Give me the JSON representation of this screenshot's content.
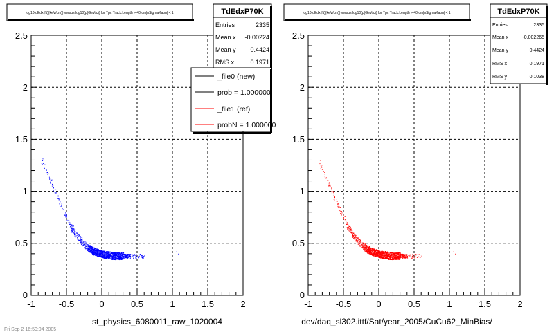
{
  "footer_text": "Fri Sep 2 16:50:04 2005",
  "chart_data": [
    {
      "type": "scatter",
      "title": "log10(dEdx(fit)(keV/cm)) versus log10(p(GeV/c)) for Tpc Track.Length > 40 cm|nSigmaKaon| < 1",
      "xlabel": "st_physics_6080011_raw_1020004",
      "ylabel": "",
      "xlim": [
        -1,
        2
      ],
      "ylim": [
        0,
        2.5
      ],
      "x_ticks": [
        "-1",
        "-0.5",
        "0",
        "0.5",
        "1",
        "1.5",
        "2"
      ],
      "y_ticks": [
        "0",
        "0.5",
        "1",
        "1.5",
        "2",
        "2.5"
      ],
      "grid": true,
      "color": "#0000ff",
      "stats": {
        "name": "TdEdxP70K",
        "rows": [
          {
            "label": "Entries",
            "value": "2335"
          },
          {
            "label": "Mean x",
            "value": "-0.00224"
          },
          {
            "label": "Mean y",
            "value": "0.4424"
          },
          {
            "label": "RMS x",
            "value": "0.1971"
          }
        ]
      },
      "legend": [
        {
          "label": "_file0 (new)",
          "color": "#000000"
        },
        {
          "label": "prob = 1.000000",
          "color": "#000000"
        },
        {
          "label": "_file1 (ref)",
          "color": "#ff0000"
        },
        {
          "label": "probN = 1.000000",
          "color": "#ff0000"
        }
      ],
      "band": [
        [
          -0.85,
          1.3
        ],
        [
          -0.8,
          1.22
        ],
        [
          -0.75,
          1.14
        ],
        [
          -0.7,
          1.06
        ],
        [
          -0.65,
          0.98
        ],
        [
          -0.6,
          0.9
        ],
        [
          -0.55,
          0.82
        ],
        [
          -0.5,
          0.75
        ],
        [
          -0.45,
          0.68
        ],
        [
          -0.4,
          0.62
        ],
        [
          -0.35,
          0.57
        ],
        [
          -0.3,
          0.53
        ],
        [
          -0.25,
          0.49
        ],
        [
          -0.2,
          0.46
        ],
        [
          -0.15,
          0.44
        ],
        [
          -0.1,
          0.42
        ],
        [
          -0.05,
          0.41
        ],
        [
          0.0,
          0.4
        ],
        [
          0.05,
          0.39
        ],
        [
          0.1,
          0.39
        ],
        [
          0.15,
          0.38
        ],
        [
          0.2,
          0.38
        ],
        [
          0.25,
          0.38
        ],
        [
          0.3,
          0.38
        ],
        [
          0.4,
          0.38
        ],
        [
          0.5,
          0.38
        ],
        [
          0.6,
          0.38
        ]
      ],
      "outliers": [
        [
          1.05,
          0.42
        ],
        [
          1.08,
          0.4
        ]
      ]
    },
    {
      "type": "scatter",
      "title": "log10(dEdx(fit)(keV/cm)) versus log10(p(GeV/c)) for Tpc Track.Length > 40 cm|nSigmaKaon| < 1",
      "xlabel": "dev/daq_sl302.ittf/Sat/year_2005/CuCu62_MinBias/",
      "ylabel": "",
      "xlim": [
        -1,
        2
      ],
      "ylim": [
        0,
        2.5
      ],
      "x_ticks": [
        "-1",
        "-0.5",
        "0",
        "0.5",
        "1",
        "1.5",
        "2"
      ],
      "y_ticks": [
        "0",
        "0.5",
        "1",
        "1.5",
        "2",
        "2.5"
      ],
      "grid": true,
      "color": "#ff0000",
      "stats": {
        "name": "TdEdxP70K",
        "rows": [
          {
            "label": "Entries",
            "value": "2335"
          },
          {
            "label": "Mean x",
            "value": "-0.002265"
          },
          {
            "label": "Mean y",
            "value": "0.4424"
          },
          {
            "label": "RMS x",
            "value": "0.1971"
          },
          {
            "label": "RMS y",
            "value": "0.1038"
          }
        ]
      },
      "band": [
        [
          -0.85,
          1.3
        ],
        [
          -0.8,
          1.22
        ],
        [
          -0.75,
          1.14
        ],
        [
          -0.7,
          1.06
        ],
        [
          -0.65,
          0.98
        ],
        [
          -0.6,
          0.9
        ],
        [
          -0.55,
          0.82
        ],
        [
          -0.5,
          0.75
        ],
        [
          -0.45,
          0.68
        ],
        [
          -0.4,
          0.62
        ],
        [
          -0.35,
          0.57
        ],
        [
          -0.3,
          0.53
        ],
        [
          -0.25,
          0.49
        ],
        [
          -0.2,
          0.46
        ],
        [
          -0.15,
          0.44
        ],
        [
          -0.1,
          0.42
        ],
        [
          -0.05,
          0.41
        ],
        [
          0.0,
          0.4
        ],
        [
          0.05,
          0.39
        ],
        [
          0.1,
          0.39
        ],
        [
          0.15,
          0.38
        ],
        [
          0.2,
          0.38
        ],
        [
          0.25,
          0.38
        ],
        [
          0.3,
          0.38
        ],
        [
          0.4,
          0.38
        ],
        [
          0.5,
          0.38
        ],
        [
          0.6,
          0.38
        ]
      ],
      "outliers": [
        [
          1.05,
          0.42
        ],
        [
          1.08,
          0.4
        ]
      ]
    }
  ]
}
